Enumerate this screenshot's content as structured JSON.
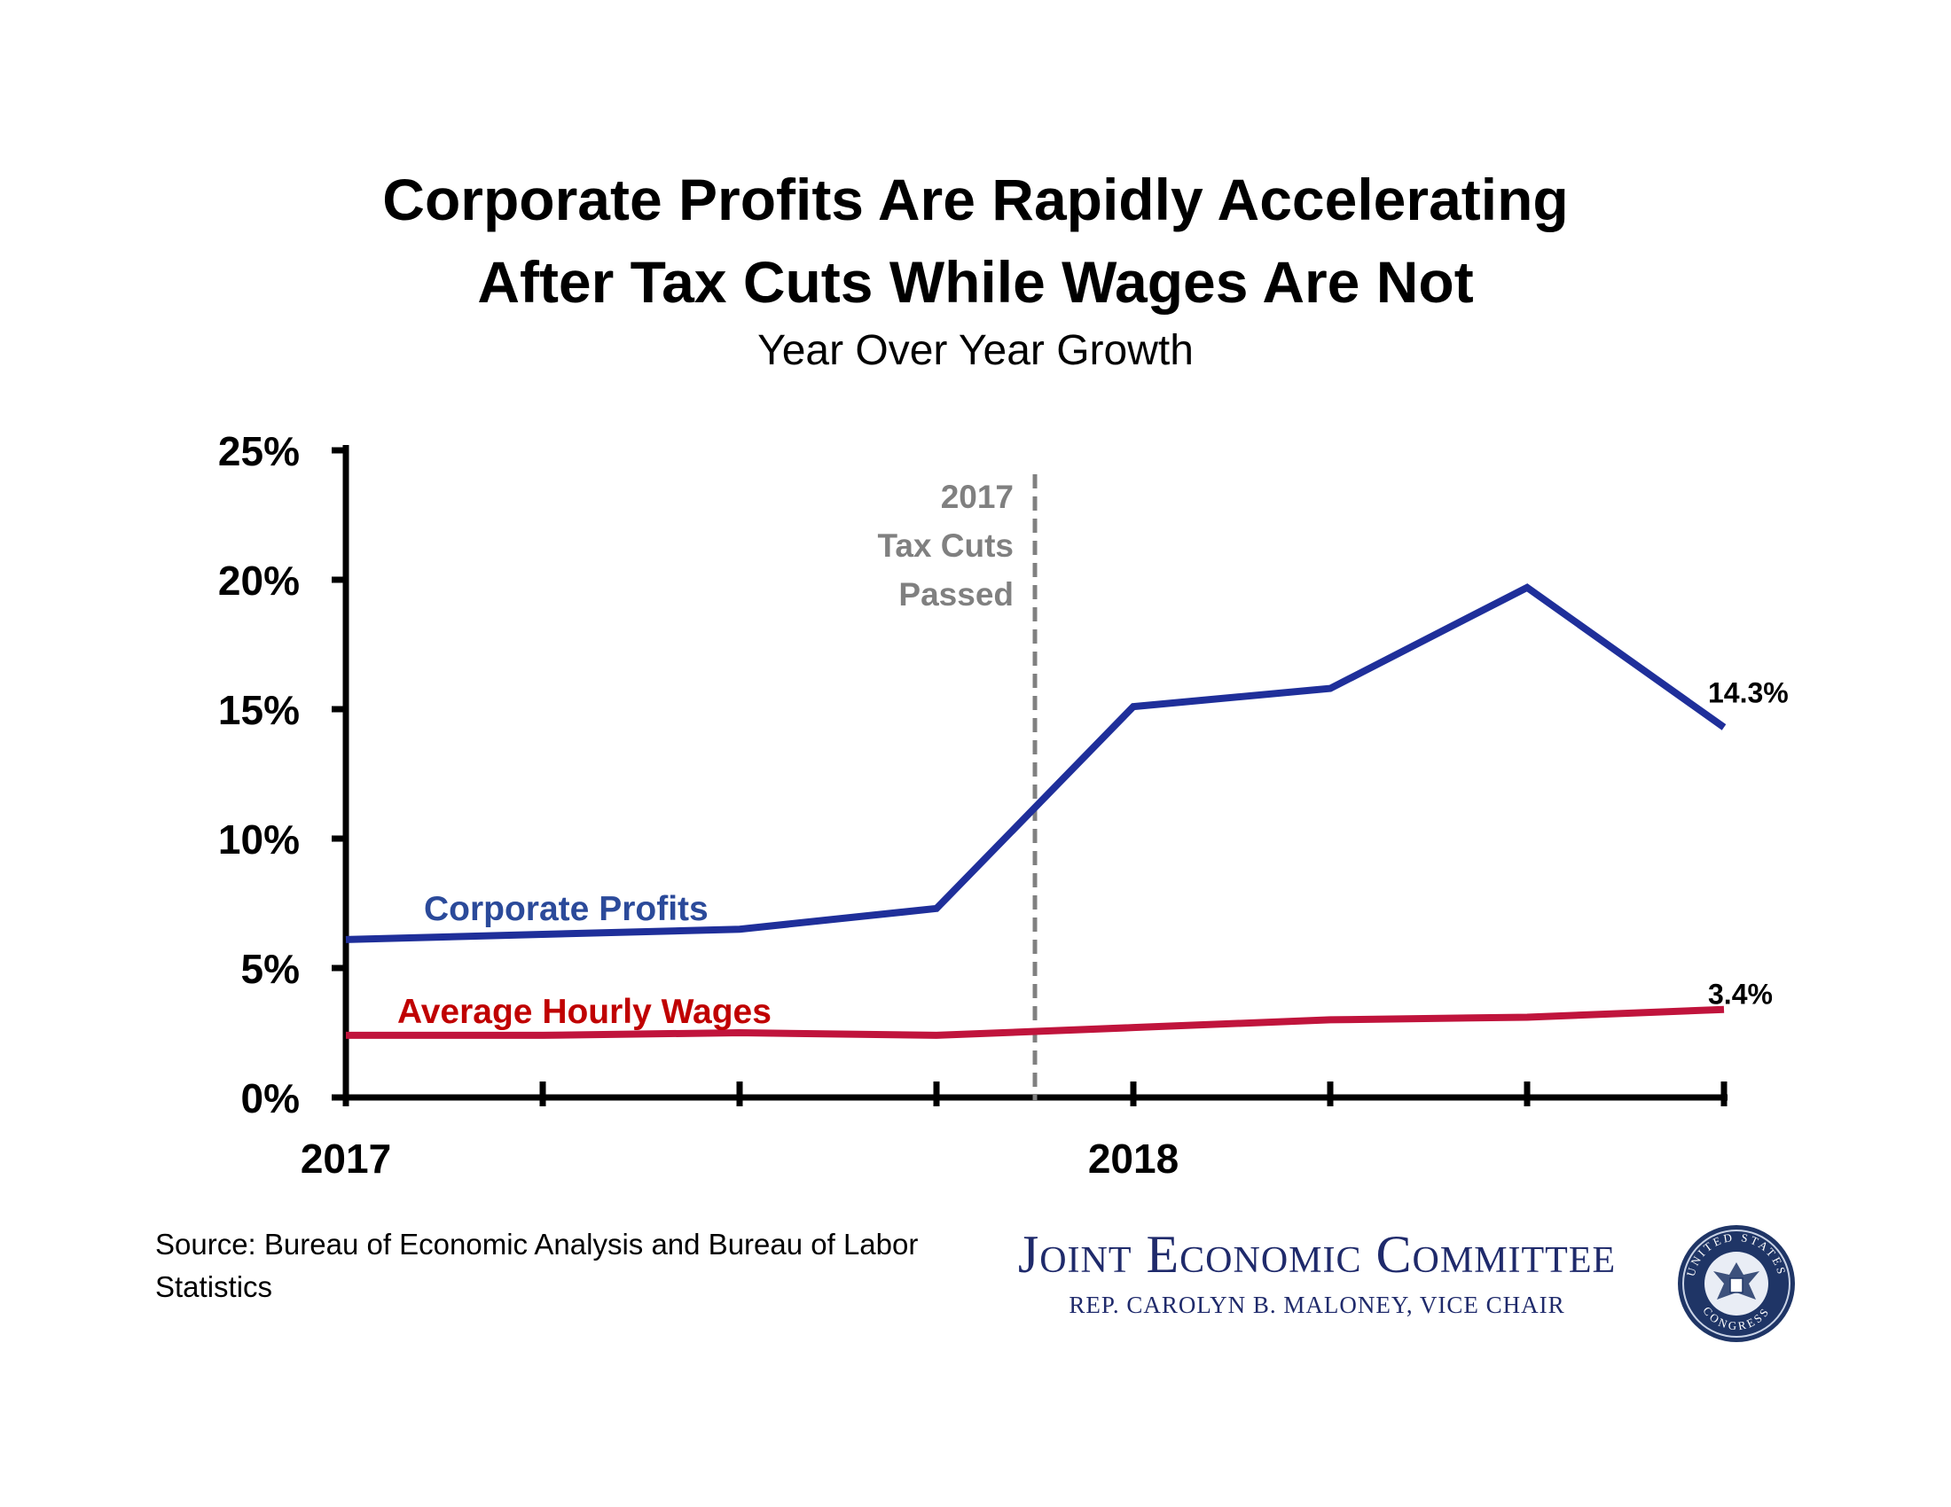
{
  "chart_data": {
    "type": "line",
    "title_line1": "Corporate Profits Are Rapidly Accelerating",
    "title_line2": "After Tax Cuts While Wages Are Not",
    "subtitle": "Year Over Year Growth",
    "xlabel": "",
    "ylabel": "",
    "x_tick_labels": [
      "2017",
      "2018"
    ],
    "x_tick_label_quarters": [
      1,
      5
    ],
    "x_quarters": [
      1,
      2,
      3,
      4,
      5,
      6,
      7,
      8
    ],
    "y_tick_labels": [
      "0%",
      "5%",
      "10%",
      "15%",
      "20%",
      "25%"
    ],
    "y_ticks": [
      0,
      5,
      10,
      15,
      20,
      25
    ],
    "ylim": [
      0,
      25
    ],
    "grid": false,
    "series": [
      {
        "name": "Corporate Profits",
        "color": "#1f2f9a",
        "label_color": "#2b4a9a",
        "values": [
          6.1,
          6.3,
          6.5,
          7.3,
          15.1,
          15.8,
          19.7,
          14.3
        ],
        "end_label": "14.3%"
      },
      {
        "name": "Average Hourly Wages",
        "color": "#c0143c",
        "label_color": "#c00000",
        "values": [
          2.4,
          2.4,
          2.5,
          2.4,
          2.7,
          3.0,
          3.1,
          3.4
        ],
        "end_label": "3.4%"
      }
    ],
    "annotation": {
      "lines": [
        "2017",
        "Tax Cuts",
        "Passed"
      ],
      "x_quarter": 4.5,
      "color": "#808080"
    }
  },
  "source_text": "Source: Bureau of Economic Analysis and Bureau of Labor Statistics",
  "logo": {
    "name": "Joint Economic Committee",
    "subtitle": "REP. CAROLYN B. MALONEY, VICE CHAIR",
    "color": "#1f2a6b"
  },
  "seal": {
    "top_text": "UNITED STATES",
    "bottom_text": "CONGRESS"
  }
}
